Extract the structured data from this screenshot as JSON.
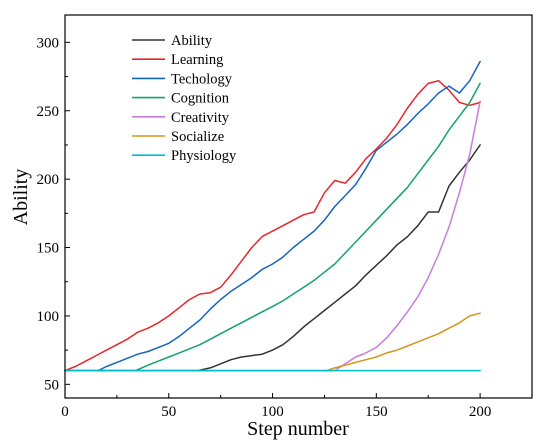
{
  "chart_data": {
    "type": "line",
    "title": "",
    "xlabel": "Step number",
    "ylabel": "Ability",
    "xlim": [
      0,
      225
    ],
    "ylim": [
      40,
      320
    ],
    "xticks": [
      0,
      50,
      100,
      150,
      200
    ],
    "yticks": [
      50,
      100,
      150,
      200,
      250,
      300
    ],
    "grid": false,
    "legend_position": "top-left",
    "series": [
      {
        "name": "Ability",
        "color": "#333333",
        "x": [
          0,
          64,
          70,
          75,
          80,
          85,
          90,
          95,
          100,
          105,
          110,
          115,
          120,
          125,
          130,
          135,
          140,
          145,
          150,
          155,
          160,
          165,
          170,
          175,
          180,
          185,
          190,
          195,
          200
        ],
        "y": [
          60,
          60,
          62,
          65,
          68,
          70,
          71,
          72,
          75,
          79,
          85,
          92,
          98,
          104,
          110,
          116,
          122,
          130,
          137,
          144,
          152,
          158,
          166,
          176,
          176,
          195,
          205,
          214,
          225
        ]
      },
      {
        "name": "Learning",
        "color": "#e8262a",
        "x": [
          0,
          5,
          10,
          15,
          20,
          25,
          30,
          35,
          40,
          45,
          50,
          55,
          60,
          65,
          70,
          75,
          80,
          85,
          90,
          95,
          100,
          105,
          110,
          115,
          120,
          125,
          130,
          135,
          140,
          145,
          150,
          155,
          160,
          165,
          170,
          175,
          180,
          185,
          190,
          195,
          200
        ],
        "y": [
          60,
          63,
          67,
          71,
          75,
          79,
          83,
          88,
          91,
          95,
          100,
          106,
          112,
          116,
          117,
          121,
          130,
          140,
          150,
          158,
          162,
          166,
          170,
          174,
          176,
          190,
          199,
          197,
          205,
          215,
          222,
          230,
          240,
          252,
          262,
          270,
          272,
          265,
          256,
          254,
          256
        ]
      },
      {
        "name": "Techology",
        "color": "#1565c0",
        "x": [
          0,
          16,
          20,
          25,
          30,
          35,
          40,
          45,
          50,
          55,
          60,
          65,
          70,
          75,
          80,
          85,
          90,
          95,
          100,
          105,
          110,
          115,
          120,
          125,
          130,
          135,
          140,
          145,
          150,
          155,
          160,
          165,
          170,
          175,
          180,
          185,
          190,
          195,
          200
        ],
        "y": [
          60,
          60,
          63,
          66,
          69,
          72,
          74,
          77,
          80,
          85,
          91,
          97,
          105,
          112,
          118,
          123,
          128,
          134,
          138,
          143,
          150,
          156,
          162,
          170,
          180,
          188,
          196,
          208,
          221,
          227,
          233,
          240,
          248,
          255,
          263,
          268,
          263,
          272,
          286
        ]
      },
      {
        "name": "Cognition",
        "color": "#12a36e",
        "x": [
          0,
          34,
          40,
          45,
          50,
          55,
          60,
          65,
          70,
          75,
          80,
          85,
          90,
          95,
          100,
          105,
          110,
          115,
          120,
          125,
          130,
          135,
          140,
          145,
          150,
          155,
          160,
          165,
          170,
          175,
          180,
          185,
          190,
          195,
          200
        ],
        "y": [
          60,
          60,
          64,
          67,
          70,
          73,
          76,
          79,
          83,
          87,
          91,
          95,
          99,
          103,
          107,
          111,
          116,
          121,
          126,
          132,
          138,
          146,
          154,
          162,
          170,
          178,
          186,
          194,
          204,
          214,
          224,
          236,
          246,
          256,
          270
        ]
      },
      {
        "name": "Creativity",
        "color": "#c77ddb",
        "x": [
          0,
          130,
          135,
          140,
          145,
          150,
          155,
          160,
          165,
          170,
          175,
          180,
          185,
          190,
          195,
          200
        ],
        "y": [
          60,
          60,
          65,
          70,
          73,
          77,
          84,
          93,
          103,
          114,
          128,
          145,
          165,
          190,
          218,
          257
        ]
      },
      {
        "name": "Socialize",
        "color": "#d4951a",
        "x": [
          0,
          126,
          130,
          135,
          140,
          145,
          150,
          155,
          160,
          165,
          170,
          175,
          180,
          185,
          190,
          195,
          200
        ],
        "y": [
          60,
          60,
          62,
          64,
          66,
          68,
          70,
          73,
          75,
          78,
          81,
          84,
          87,
          91,
          95,
          100,
          102
        ]
      },
      {
        "name": "Physiology",
        "color": "#00bfc8",
        "x": [
          0,
          200
        ],
        "y": [
          60,
          60
        ]
      }
    ]
  }
}
